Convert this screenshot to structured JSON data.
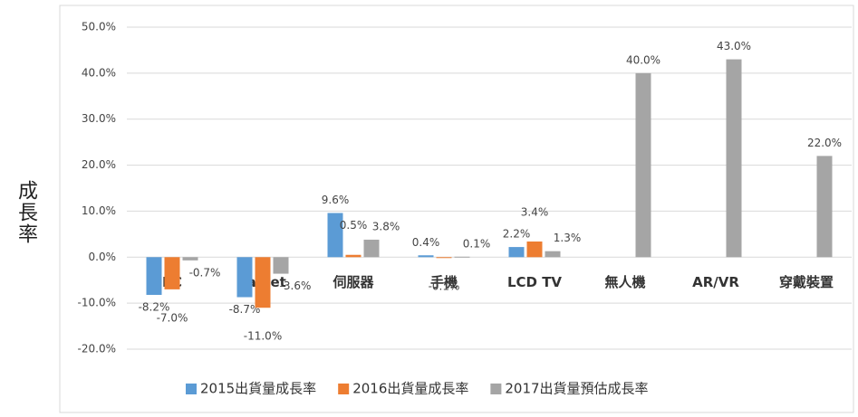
{
  "chart_data": {
    "type": "bar",
    "y_axis_label": "成長率",
    "categories": [
      "PC",
      "Tablet",
      "伺服器",
      "手機",
      "LCD TV",
      "無人機",
      "AR/VR",
      "穿戴裝置"
    ],
    "series": [
      {
        "name": "2015出貨量成長率",
        "color": "#5b9bd5",
        "values": [
          -8.2,
          -8.7,
          9.6,
          0.4,
          2.2,
          null,
          null,
          null
        ],
        "value_labels": [
          "-8.2%",
          "-8.7%",
          "9.6%",
          "0.4%",
          "2.2%",
          null,
          null,
          null
        ]
      },
      {
        "name": "2016出貨量成長率",
        "color": "#ed7d31",
        "values": [
          -7.0,
          -11.0,
          0.5,
          -0.1,
          3.4,
          null,
          null,
          null
        ],
        "value_labels": [
          "-7.0%",
          "-11.0%",
          "0.5%",
          "-0.1%",
          "3.4%",
          null,
          null,
          null
        ]
      },
      {
        "name": "2017出貨量預估成長率",
        "color": "#a5a5a5",
        "values": [
          -0.7,
          -3.6,
          3.8,
          0.1,
          1.3,
          40.0,
          43.0,
          22.0
        ],
        "value_labels": [
          "-0.7%",
          "-3.6%",
          "3.8%",
          "0.1%",
          "1.3%",
          "40.0%",
          "43.0%",
          "22.0%"
        ]
      }
    ],
    "ylim": [
      -20,
      50
    ],
    "yticks": [
      {
        "value": -20,
        "label": "-20.0%"
      },
      {
        "value": -10,
        "label": "-10.0%"
      },
      {
        "value": 0,
        "label": "0.0%"
      },
      {
        "value": 10,
        "label": "10.0%"
      },
      {
        "value": 20,
        "label": "20.0%"
      },
      {
        "value": 30,
        "label": "30.0%"
      },
      {
        "value": 40,
        "label": "40.0%"
      },
      {
        "value": 50,
        "label": "50.0%"
      }
    ],
    "grid": true,
    "legend": "bottom"
  }
}
